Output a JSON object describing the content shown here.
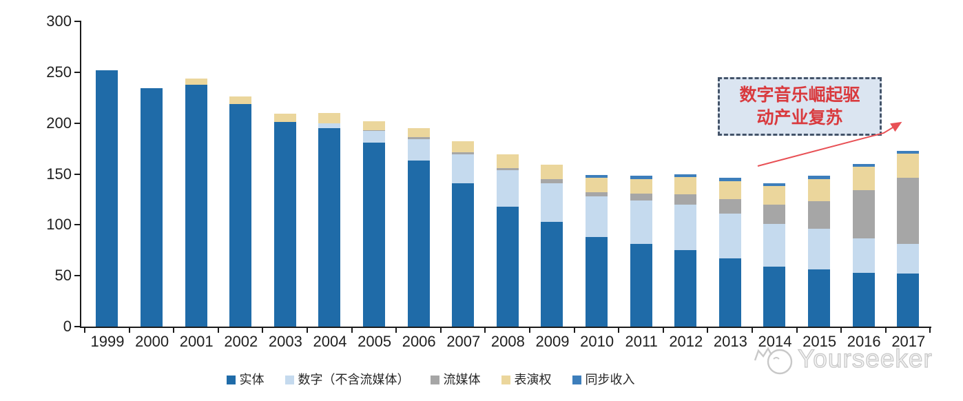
{
  "chart_data": {
    "type": "bar",
    "stacked": true,
    "title": "",
    "xlabel": "",
    "ylabel": "",
    "ylim": [
      0,
      300
    ],
    "yticks": [
      0,
      50,
      100,
      150,
      200,
      250,
      300
    ],
    "grid": false,
    "legend_position": "bottom",
    "categories": [
      "1999",
      "2000",
      "2001",
      "2002",
      "2003",
      "2004",
      "2005",
      "2006",
      "2007",
      "2008",
      "2009",
      "2010",
      "2011",
      "2012",
      "2013",
      "2014",
      "2015",
      "2016",
      "2017"
    ],
    "series": [
      {
        "key": "physical",
        "name": "实体",
        "color": "#1F6BA8",
        "values": [
          252,
          234,
          238,
          219,
          201,
          195,
          181,
          163,
          141,
          118,
          103,
          88,
          81,
          75,
          67,
          59,
          56,
          53,
          52
        ]
      },
      {
        "key": "digital-ex-streaming",
        "name": "数字（不含流媒体）",
        "color": "#C5DAEE",
        "values": [
          0,
          0,
          0,
          0,
          0,
          5,
          11,
          21,
          28,
          36,
          38,
          40,
          43,
          45,
          44,
          42,
          40,
          34,
          29
        ]
      },
      {
        "key": "streaming",
        "name": "流媒体",
        "color": "#A6A6A6",
        "values": [
          0,
          0,
          0,
          0,
          0,
          0,
          1,
          2,
          2,
          2,
          4,
          4,
          7,
          10,
          14,
          19,
          27,
          47,
          65
        ]
      },
      {
        "key": "performance-rights",
        "name": "表演权",
        "color": "#EBD69C",
        "values": [
          0,
          0,
          6,
          7,
          8,
          10,
          9,
          9,
          11,
          13,
          14,
          14,
          14,
          17,
          18,
          18,
          22,
          23,
          24
        ]
      },
      {
        "key": "sync",
        "name": "同步收入",
        "color": "#3D7EBB",
        "values": [
          0,
          0,
          0,
          0,
          0,
          0,
          0,
          0,
          0,
          0,
          0,
          3,
          3,
          3,
          3,
          3,
          3,
          3,
          3
        ]
      }
    ]
  },
  "annotation": {
    "line1": "数字音乐崛起驱",
    "line2": "动产业复苏",
    "text_color": "#D93A3E",
    "box_fill": "#DBE5F1",
    "box_border_color": "#44546A",
    "arrow_color": "#E85055"
  },
  "watermark": {
    "text": "Yourseeker"
  }
}
